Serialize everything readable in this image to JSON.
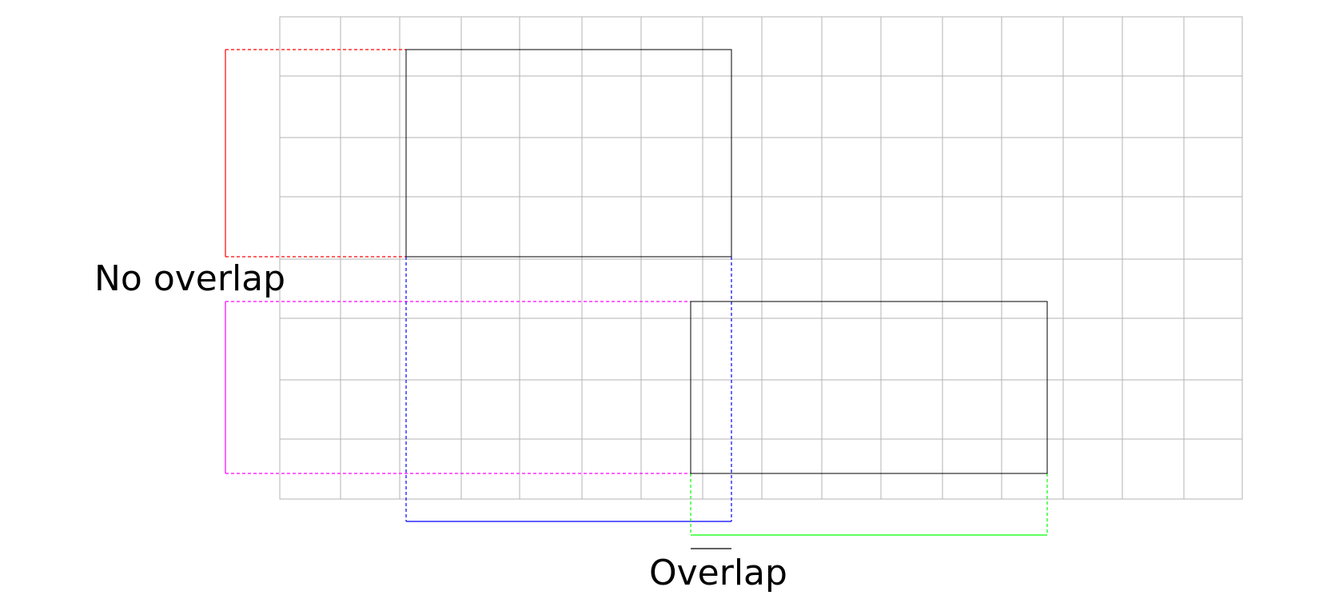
{
  "labels": {
    "no_overlap": "No overlap",
    "overlap": "Overlap"
  },
  "colors": {
    "grid": "#b3b3b3",
    "rect_outline": "#000000",
    "red_projection": "#ff0000",
    "blue_projection": "#0000ff",
    "magenta_projection": "#ff00ff",
    "green_projection": "#00ff00",
    "overlap_bar": "#000000"
  }
}
